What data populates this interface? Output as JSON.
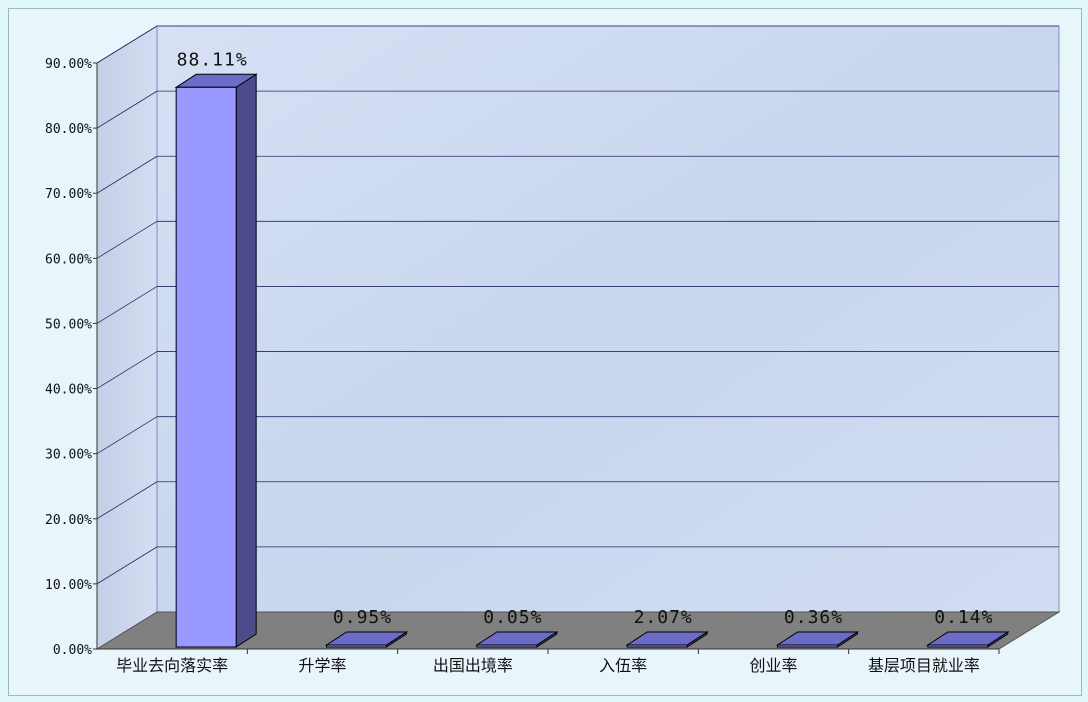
{
  "chart_data": {
    "type": "bar",
    "title": "",
    "xlabel": "",
    "ylabel": "",
    "categories": [
      "毕业去向落实率",
      "升学率",
      "出国出境率",
      "入伍率",
      "创业率",
      "基层项目就业率"
    ],
    "values": [
      88.11,
      0.95,
      0.05,
      2.07,
      0.36,
      0.14
    ],
    "value_labels": [
      "88.11%",
      "0.95%",
      "0.05%",
      "2.07%",
      "0.36%",
      "0.14%"
    ],
    "y_ticks": [
      "0.00%",
      "10.00%",
      "20.00%",
      "30.00%",
      "40.00%",
      "50.00%",
      "60.00%",
      "70.00%",
      "80.00%",
      "90.00%"
    ],
    "ylim": [
      0,
      90
    ],
    "grid": true,
    "legend": "none",
    "style": "3d-column"
  },
  "colors": {
    "bar_front": "#9999ff",
    "bar_side": "#4c4c8a",
    "bar_top": "#6b6bc8",
    "floor": "#808080",
    "grid": "#2a2a60",
    "wall": "#c9d8ef"
  }
}
